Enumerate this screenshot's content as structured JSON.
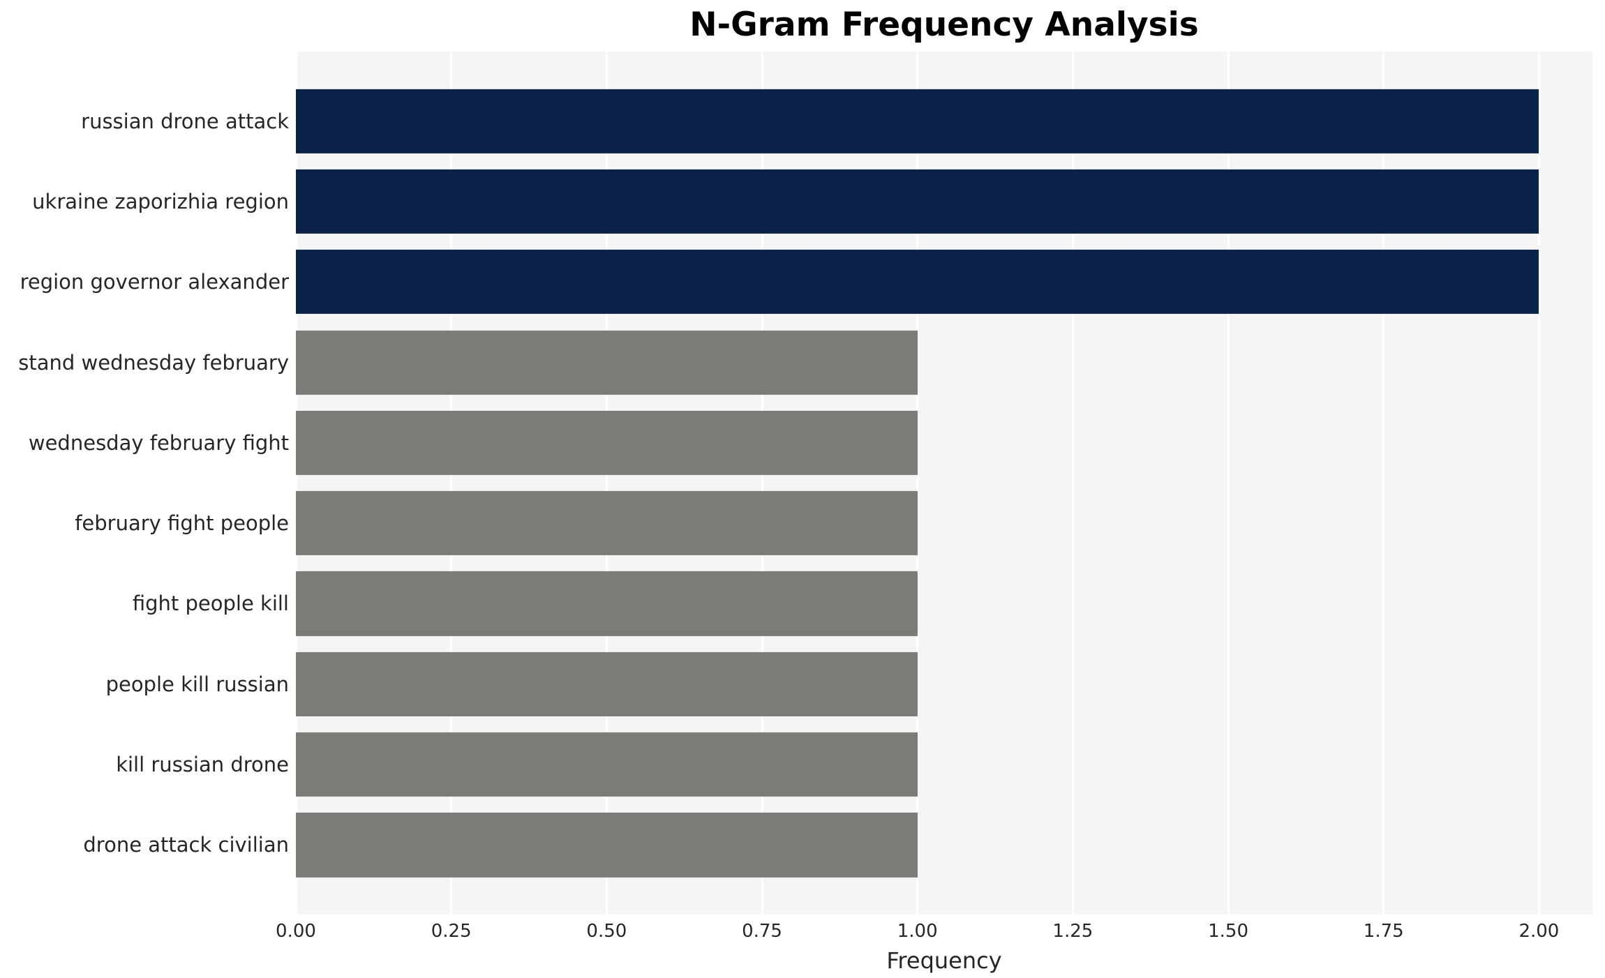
{
  "chart_data": {
    "type": "bar",
    "orientation": "horizontal",
    "title": "N-Gram Frequency Analysis",
    "xlabel": "Frequency",
    "ylabel": "",
    "categories": [
      "russian drone attack",
      "ukraine zaporizhia region",
      "region governor alexander",
      "stand wednesday february",
      "wednesday february fight",
      "february fight people",
      "fight people kill",
      "people kill russian",
      "kill russian drone",
      "drone attack civilian"
    ],
    "values": [
      2,
      2,
      2,
      1,
      1,
      1,
      1,
      1,
      1,
      1
    ],
    "bar_colors": [
      "#0a2247",
      "#0a2247",
      "#0a2247",
      "#7d7b75",
      "#7d7b75",
      "#7d7b75",
      "#7d7b75",
      "#7d7b75",
      "#7d7b75",
      "#7d7b75"
    ],
    "xlim": [
      0,
      2.086
    ],
    "xticks": [
      0,
      0.25,
      0.5,
      0.75,
      1.0,
      1.25,
      1.5,
      1.75,
      2.0
    ],
    "grid": true,
    "legend_visible": false,
    "plot_background": "#f5f5f6",
    "gridline_color": "#ffffff",
    "navy_color": "#0a2247",
    "gray_color": "#7d7b75"
  }
}
